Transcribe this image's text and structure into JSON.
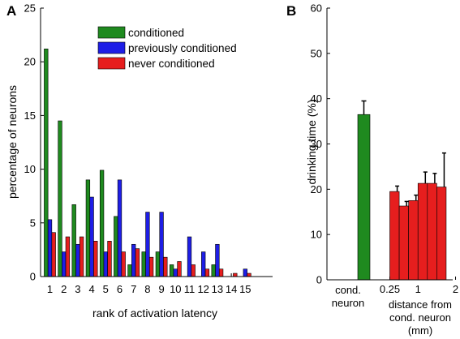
{
  "chart_data": [
    {
      "panel": "A",
      "type": "bar",
      "xlabel": "rank of activation latency",
      "ylabel": "percentage of neurons",
      "ylim": [
        0,
        25
      ],
      "yticks": [
        "0",
        "5",
        "10",
        "15",
        "20",
        "25"
      ],
      "categories": [
        "1",
        "2",
        "3",
        "4",
        "5",
        "6",
        "7",
        "8",
        "9",
        "10",
        "11",
        "12",
        "13",
        "14",
        "15"
      ],
      "legend_position": "top-right",
      "series": [
        {
          "name": "conditioned",
          "color": "#1f8a1f",
          "values": [
            21.2,
            14.5,
            6.7,
            9.0,
            9.9,
            5.6,
            1.1,
            2.3,
            2.3,
            1.1,
            0,
            0,
            1.1,
            0,
            0
          ]
        },
        {
          "name": "previously conditioned",
          "color": "#1e1ee6",
          "values": [
            5.3,
            2.3,
            3.0,
            7.4,
            2.3,
            9.0,
            3.0,
            6.0,
            6.0,
            0.7,
            3.7,
            2.3,
            3.0,
            0,
            0.7
          ]
        },
        {
          "name": "never conditioned",
          "color": "#e61e1e",
          "values": [
            4.1,
            3.7,
            3.7,
            3.3,
            3.3,
            2.3,
            2.6,
            1.8,
            1.8,
            1.4,
            1.1,
            0.7,
            0.7,
            0.3,
            0.3
          ]
        }
      ]
    },
    {
      "panel": "B",
      "type": "bar",
      "ylabel": "drinking time (%)",
      "ylim": [
        0,
        60
      ],
      "yticks": [
        "0",
        "10",
        "20",
        "30",
        "40",
        "50",
        "60"
      ],
      "xtick_labels": [
        "0.25",
        "1",
        "2"
      ],
      "xtick_values": [
        0.25,
        1,
        2
      ],
      "category_labels": [
        "cond.",
        "neuron"
      ],
      "xlabel_lines": [
        "distance from",
        "cond. neuron",
        "(mm)"
      ],
      "cond_bar": {
        "value": 36.5,
        "error": 3.0,
        "color": "#1f8a1f"
      },
      "distance_bars": {
        "color": "#e61e1e",
        "x_start": [
          0.25,
          0.5,
          0.75,
          1.0,
          1.25,
          1.5
        ],
        "width": 0.25,
        "values": [
          19.5,
          16.3,
          17.5,
          21.3,
          21.3,
          20.5
        ],
        "errors": [
          1.2,
          1.0,
          1.2,
          2.5,
          2.2,
          7.5
        ]
      }
    }
  ]
}
